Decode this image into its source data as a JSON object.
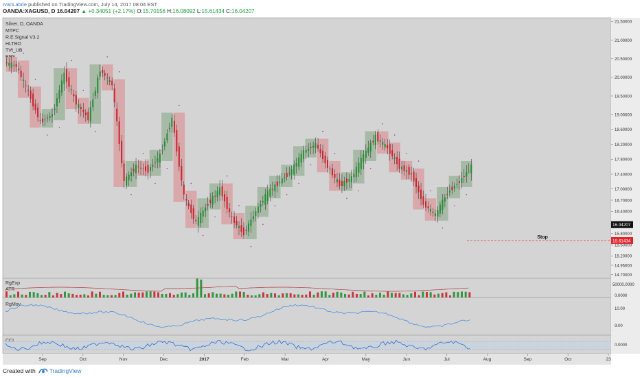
{
  "header": {
    "author": "IvanLabrie",
    "published_text": "published on TradingView.com, July 14, 2017 08:04 EST",
    "symbol": "OANDA:XAGUSD, D",
    "last": "16.04207",
    "change": "+0.34051 (+2.17%)",
    "o_label": "O:",
    "o_value": "15.70156",
    "h_label": "H:",
    "h_value": "16.08092",
    "l_label": "L:",
    "l_value": "15.61434",
    "c_label": "C:",
    "c_value": "16.04207"
  },
  "footer": {
    "created_with": "Created with",
    "brand": "TradingView"
  },
  "colors": {
    "background": "#d4d4d4",
    "up_candle": "#1f8f2e",
    "down_candle": "#c8232c",
    "up_box": "#9fb59d",
    "down_box": "#d9a0a3",
    "osc_line": "#4a8fe0",
    "volume_line": "#b03a3a",
    "stop_line": "#e0252e"
  },
  "chart_data": {
    "type": "candlestick",
    "instrument": "Silver, D, OANDA",
    "indicator_labels": [
      "MTPC",
      "R.E.Signal V3.2",
      "HLTBO",
      "TVI_UB",
      "EPS"
    ],
    "price_ticks": [
      "21.50000",
      "21.00000",
      "20.50000",
      "20.00000",
      "19.50000",
      "19.00000",
      "18.60000",
      "18.20000",
      "17.80000",
      "17.40000",
      "17.00000",
      "16.70000",
      "16.40000",
      "15.80000",
      "15.50000",
      "15.20000",
      "14.95000",
      "14.70000"
    ],
    "price_tick_values": [
      21.5,
      21.0,
      20.5,
      20.0,
      19.5,
      19.0,
      18.6,
      18.2,
      17.8,
      17.4,
      17.0,
      16.7,
      16.4,
      15.8,
      15.5,
      15.2,
      14.95,
      14.7
    ],
    "x_labels": [
      "Sep",
      "Oct",
      "Nov",
      "Dec",
      "2017",
      "Feb",
      "Mar",
      "Apr",
      "May",
      "Jun",
      "Jul",
      "Aug",
      "Sep",
      "Oct",
      "23"
    ],
    "last_price_label": "16.04207",
    "stop_price_label": "15.61434",
    "stop_price": 15.61434,
    "stop_text": "Stop",
    "closes": [
      20.3,
      19.6,
      18.8,
      19.0,
      20.1,
      19.3,
      18.9,
      20.2,
      19.8,
      17.2,
      17.6,
      17.5,
      17.9,
      18.9,
      16.8,
      16.1,
      16.6,
      17.0,
      16.2,
      15.8,
      16.4,
      16.9,
      17.2,
      17.5,
      18.0,
      18.2,
      17.6,
      17.1,
      17.3,
      17.9,
      18.4,
      18.1,
      17.6,
      17.4,
      16.6,
      16.3,
      16.9,
      17.2,
      17.6
    ],
    "volume_panel": {
      "labels": [
        "RgExp",
        "ATR"
      ],
      "ticks": [
        "50000.0000",
        "0.0000"
      ]
    },
    "rgmov_panel": {
      "label": "RgMov",
      "ticks": [
        "10.00",
        "9.00"
      ]
    },
    "cci_panel": {
      "label": "CCI",
      "ticks": [
        "0.0000"
      ]
    }
  }
}
